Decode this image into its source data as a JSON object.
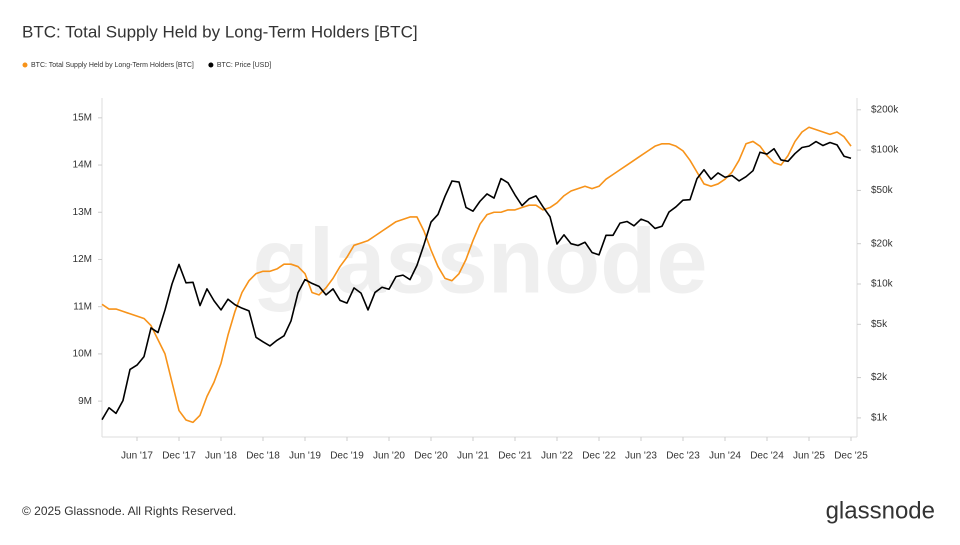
{
  "chart_data": {
    "type": "line",
    "title": "BTC: Total Supply Held by Long-Term Holders [BTC]",
    "watermark": "glassnode",
    "footer": "© 2025 Glassnode. All Rights Reserved.",
    "logo": "glassnode",
    "x": [
      "2017-01",
      "2017-02",
      "2017-03",
      "2017-04",
      "2017-05",
      "2017-06",
      "2017-07",
      "2017-08",
      "2017-09",
      "2017-10",
      "2017-11",
      "2017-12",
      "2018-01",
      "2018-02",
      "2018-03",
      "2018-04",
      "2018-05",
      "2018-06",
      "2018-07",
      "2018-08",
      "2018-09",
      "2018-10",
      "2018-11",
      "2018-12",
      "2019-01",
      "2019-02",
      "2019-03",
      "2019-04",
      "2019-05",
      "2019-06",
      "2019-07",
      "2019-08",
      "2019-09",
      "2019-10",
      "2019-11",
      "2019-12",
      "2020-01",
      "2020-02",
      "2020-03",
      "2020-04",
      "2020-05",
      "2020-06",
      "2020-07",
      "2020-08",
      "2020-09",
      "2020-10",
      "2020-11",
      "2020-12",
      "2021-01",
      "2021-02",
      "2021-03",
      "2021-04",
      "2021-05",
      "2021-06",
      "2021-07",
      "2021-08",
      "2021-09",
      "2021-10",
      "2021-11",
      "2021-12",
      "2022-01",
      "2022-02",
      "2022-03",
      "2022-04",
      "2022-05",
      "2022-06",
      "2022-07",
      "2022-08",
      "2022-09",
      "2022-10",
      "2022-11",
      "2022-12",
      "2023-01",
      "2023-02",
      "2023-03",
      "2023-04",
      "2023-05",
      "2023-06",
      "2023-07",
      "2023-08",
      "2023-09",
      "2023-10",
      "2023-11",
      "2023-12",
      "2024-01",
      "2024-02",
      "2024-03",
      "2024-04",
      "2024-05",
      "2024-06",
      "2024-07",
      "2024-08",
      "2024-09",
      "2024-10",
      "2024-11",
      "2024-12",
      "2025-01",
      "2025-02",
      "2025-03",
      "2025-04",
      "2025-05",
      "2025-06",
      "2025-07",
      "2025-08",
      "2025-09",
      "2025-10",
      "2025-11",
      "2025-12"
    ],
    "xlim": [
      "2017-01",
      "2025-12"
    ],
    "xticks": [
      {
        "value": "2017-06",
        "label": "Jun '17"
      },
      {
        "value": "2017-12",
        "label": "Dec '17"
      },
      {
        "value": "2018-06",
        "label": "Jun '18"
      },
      {
        "value": "2018-12",
        "label": "Dec '18"
      },
      {
        "value": "2019-06",
        "label": "Jun '19"
      },
      {
        "value": "2019-12",
        "label": "Dec '19"
      },
      {
        "value": "2020-06",
        "label": "Jun '20"
      },
      {
        "value": "2020-12",
        "label": "Dec '20"
      },
      {
        "value": "2021-06",
        "label": "Jun '21"
      },
      {
        "value": "2021-12",
        "label": "Dec '21"
      },
      {
        "value": "2022-06",
        "label": "Jun '22"
      },
      {
        "value": "2022-12",
        "label": "Dec '22"
      },
      {
        "value": "2023-06",
        "label": "Jun '23"
      },
      {
        "value": "2023-12",
        "label": "Dec '23"
      },
      {
        "value": "2024-06",
        "label": "Jun '24"
      },
      {
        "value": "2024-12",
        "label": "Dec '24"
      },
      {
        "value": "2025-06",
        "label": "Jun '25"
      },
      {
        "value": "2025-12",
        "label": "Dec '25"
      }
    ],
    "ylim": [
      8240000,
      15420000
    ],
    "yticks": [
      {
        "value": 9000000,
        "label": "9M"
      },
      {
        "value": 10000000,
        "label": "10M"
      },
      {
        "value": 11000000,
        "label": "11M"
      },
      {
        "value": 12000000,
        "label": "12M"
      },
      {
        "value": 13000000,
        "label": "13M"
      },
      {
        "value": 14000000,
        "label": "14M"
      },
      {
        "value": 15000000,
        "label": "15M"
      }
    ],
    "y2_log": true,
    "y2lim": [
      720,
      245000
    ],
    "y2ticks": [
      {
        "value": 1000,
        "label": "$1k"
      },
      {
        "value": 2000,
        "label": "$2k"
      },
      {
        "value": 5000,
        "label": "$5k"
      },
      {
        "value": 10000,
        "label": "$10k"
      },
      {
        "value": 20000,
        "label": "$20k"
      },
      {
        "value": 50000,
        "label": "$50k"
      },
      {
        "value": 100000,
        "label": "$100k"
      },
      {
        "value": 200000,
        "label": "$200k"
      }
    ],
    "legend": "top-left",
    "series": [
      {
        "name": "BTC: Total Supply Held by Long-Term Holders [BTC]",
        "color": "#f7931a",
        "axis": "y",
        "values": [
          11050000,
          10950000,
          10950000,
          10900000,
          10850000,
          10800000,
          10750000,
          10600000,
          10300000,
          10000000,
          9400000,
          8800000,
          8600000,
          8550000,
          8700000,
          9100000,
          9400000,
          9800000,
          10400000,
          10900000,
          11300000,
          11550000,
          11700000,
          11750000,
          11750000,
          11800000,
          11900000,
          11900000,
          11850000,
          11700000,
          11300000,
          11250000,
          11400000,
          11600000,
          11850000,
          12050000,
          12300000,
          12350000,
          12400000,
          12500000,
          12600000,
          12700000,
          12800000,
          12850000,
          12900000,
          12900000,
          12600000,
          12200000,
          11850000,
          11600000,
          11550000,
          11700000,
          12000000,
          12400000,
          12750000,
          12950000,
          13000000,
          13000000,
          13050000,
          13050000,
          13100000,
          13150000,
          13150000,
          13050000,
          13100000,
          13200000,
          13350000,
          13450000,
          13500000,
          13550000,
          13500000,
          13550000,
          13700000,
          13800000,
          13900000,
          14000000,
          14100000,
          14200000,
          14300000,
          14400000,
          14450000,
          14450000,
          14400000,
          14300000,
          14100000,
          13850000,
          13600000,
          13550000,
          13600000,
          13700000,
          13850000,
          14100000,
          14450000,
          14500000,
          14400000,
          14200000,
          14050000,
          14000000,
          14200000,
          14500000,
          14700000,
          14800000,
          14750000,
          14700000,
          14650000,
          14700000,
          14600000,
          14400000
        ]
      },
      {
        "name": "BTC: Price [USD]",
        "color": "#000000",
        "axis": "y2",
        "values": [
          970,
          1190,
          1080,
          1350,
          2300,
          2480,
          2870,
          4700,
          4340,
          6400,
          10000,
          14000,
          10200,
          10300,
          6900,
          9200,
          7500,
          6400,
          7700,
          7000,
          6600,
          6300,
          4000,
          3700,
          3450,
          3800,
          4100,
          5300,
          8600,
          10800,
          10100,
          9600,
          8300,
          9200,
          7550,
          7200,
          9350,
          8550,
          6400,
          8650,
          9450,
          9140,
          11350,
          11650,
          10780,
          13800,
          19700,
          29000,
          33100,
          45200,
          58800,
          57700,
          37300,
          35000,
          41500,
          47100,
          43800,
          61300,
          57000,
          46300,
          38500,
          43200,
          45500,
          37700,
          31800,
          19900,
          23300,
          20000,
          19400,
          20500,
          17200,
          16500,
          23100,
          23100,
          28500,
          29300,
          27200,
          30500,
          29200,
          26000,
          27000,
          34500,
          37700,
          42300,
          42600,
          61200,
          71300,
          60600,
          67500,
          62700,
          64600,
          58900,
          63300,
          70200,
          96400,
          93400,
          102400,
          84400,
          82500,
          94200,
          104600,
          107100,
          115800,
          108200,
          114000,
          109500,
          90000,
          87000
        ]
      }
    ]
  }
}
